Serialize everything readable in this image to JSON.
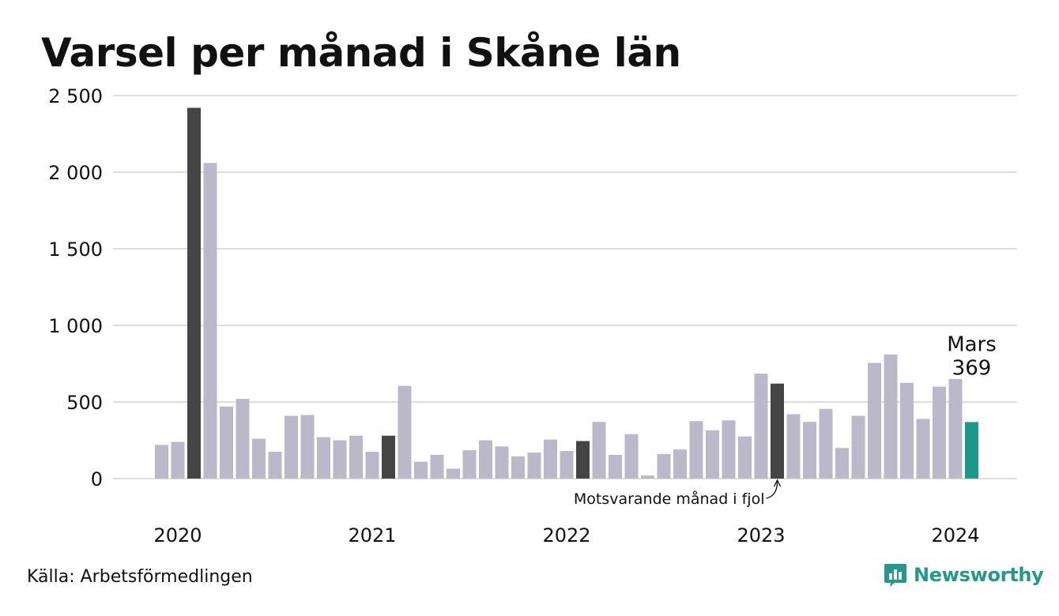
{
  "chart_data": {
    "type": "bar",
    "title": "Varsel per månad i Skåne län",
    "ylim": [
      0,
      2500
    ],
    "y_ticks": [
      {
        "value": 0,
        "label": "0"
      },
      {
        "value": 500,
        "label": "500"
      },
      {
        "value": 1000,
        "label": "1 000"
      },
      {
        "value": 1500,
        "label": "1 500"
      },
      {
        "value": 2000,
        "label": "2 000"
      },
      {
        "value": 2500,
        "label": "2 500"
      }
    ],
    "x_year_labels": [
      {
        "index": 1,
        "label": "2020"
      },
      {
        "index": 13,
        "label": "2021"
      },
      {
        "index": 25,
        "label": "2022"
      },
      {
        "index": 37,
        "label": "2023"
      },
      {
        "index": 49,
        "label": "2024"
      }
    ],
    "months": [
      "2020-01",
      "2020-02",
      "2020-03",
      "2020-04",
      "2020-05",
      "2020-06",
      "2020-07",
      "2020-08",
      "2020-09",
      "2020-10",
      "2020-11",
      "2020-12",
      "2021-01",
      "2021-02",
      "2021-03",
      "2021-04",
      "2021-05",
      "2021-06",
      "2021-07",
      "2021-08",
      "2021-09",
      "2021-10",
      "2021-11",
      "2021-12",
      "2022-01",
      "2022-02",
      "2022-03",
      "2022-04",
      "2022-05",
      "2022-06",
      "2022-07",
      "2022-08",
      "2022-09",
      "2022-10",
      "2022-11",
      "2022-12",
      "2023-01",
      "2023-02",
      "2023-03",
      "2023-04",
      "2023-05",
      "2023-06",
      "2023-07",
      "2023-08",
      "2023-09",
      "2023-10",
      "2023-11",
      "2023-12",
      "2024-01",
      "2024-02",
      "2024-03"
    ],
    "values": [
      220,
      240,
      2420,
      2060,
      470,
      520,
      260,
      175,
      410,
      415,
      270,
      250,
      280,
      175,
      280,
      605,
      110,
      155,
      65,
      185,
      250,
      210,
      145,
      170,
      255,
      180,
      245,
      370,
      155,
      290,
      20,
      160,
      190,
      375,
      315,
      380,
      275,
      685,
      620,
      420,
      370,
      455,
      200,
      410,
      755,
      810,
      625,
      390,
      600,
      650,
      369
    ],
    "highlight_same_month": [
      2,
      14,
      26,
      38
    ],
    "current_index": 50,
    "colors": {
      "bar": "#bbb9c9",
      "same_month": "#454545",
      "current": "#1a9a8a",
      "grid": "#dddddd"
    },
    "annotations": {
      "current_month": "Mars",
      "current_value": "369",
      "same_month_note": "Motsvarande månad i fjol"
    }
  },
  "footer": {
    "source": "Källa: Arbetsförmedlingen",
    "brand": "Newsworthy"
  },
  "icons": {
    "brand_logo": "newsworthy-logo-icon"
  }
}
